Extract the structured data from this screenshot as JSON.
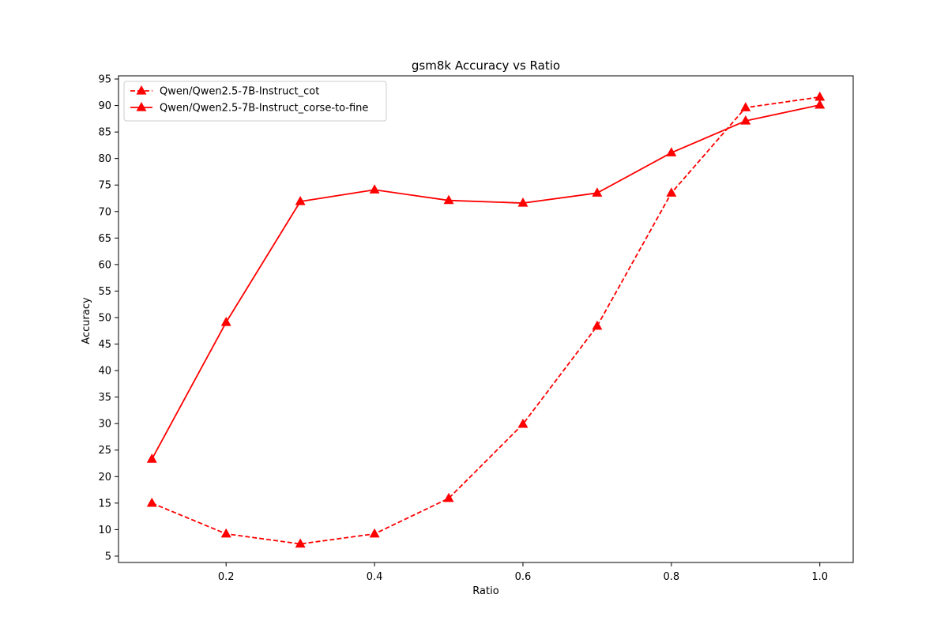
{
  "chart_data": {
    "type": "line",
    "title": "gsm8k Accuracy vs Ratio",
    "xlabel": "Ratio",
    "ylabel": "Accuracy",
    "x": [
      0.1,
      0.2,
      0.3,
      0.4,
      0.5,
      0.6,
      0.7,
      0.8,
      0.9,
      1.0
    ],
    "xlim": [
      0.055,
      1.045
    ],
    "ylim": [
      3.8,
      95.6
    ],
    "x_ticks": [
      "0.2",
      "0.4",
      "0.6",
      "0.8",
      "1.0"
    ],
    "y_ticks": [
      "5",
      "10",
      "15",
      "20",
      "25",
      "30",
      "35",
      "40",
      "45",
      "50",
      "55",
      "60",
      "65",
      "70",
      "75",
      "80",
      "85",
      "90",
      "95"
    ],
    "grid": false,
    "legend_position": "upper-left",
    "series": [
      {
        "name": "Qwen/Qwen2.5-7B-Instruct_cot",
        "color": "#ff0000",
        "line_style": "dashed",
        "marker": "triangle-up",
        "values": [
          15.0,
          9.2,
          7.3,
          9.2,
          15.9,
          29.9,
          48.4,
          73.5,
          89.6,
          91.6
        ]
      },
      {
        "name": "Qwen/Qwen2.5-7B-Instruct_corse-to-fine",
        "color": "#ff0000",
        "line_style": "solid",
        "marker": "triangle-up",
        "values": [
          23.3,
          49.1,
          71.9,
          74.1,
          72.1,
          71.6,
          73.5,
          81.1,
          87.1,
          90.1
        ]
      }
    ]
  }
}
